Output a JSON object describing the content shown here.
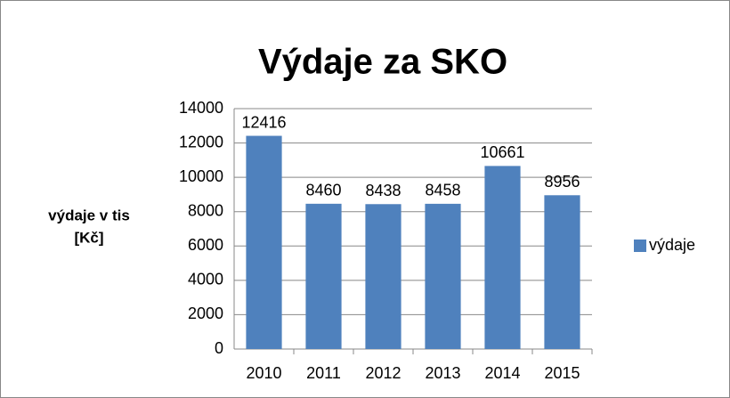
{
  "chart_data": {
    "type": "bar",
    "title": "Výdaje za SKO",
    "y_label": [
      "výdaje v tis",
      "[Kč]"
    ],
    "categories": [
      "2010",
      "2011",
      "2012",
      "2013",
      "2014",
      "2015"
    ],
    "series": [
      {
        "name": "výdaje",
        "color": "#4f81bd",
        "values": [
          12416,
          8460,
          8438,
          8458,
          10661,
          8956
        ]
      }
    ],
    "ylim": [
      0,
      14000
    ],
    "yticks": [
      0,
      2000,
      4000,
      6000,
      8000,
      10000,
      12000,
      14000
    ],
    "grid": true,
    "legend": "right",
    "data_labels": true
  }
}
